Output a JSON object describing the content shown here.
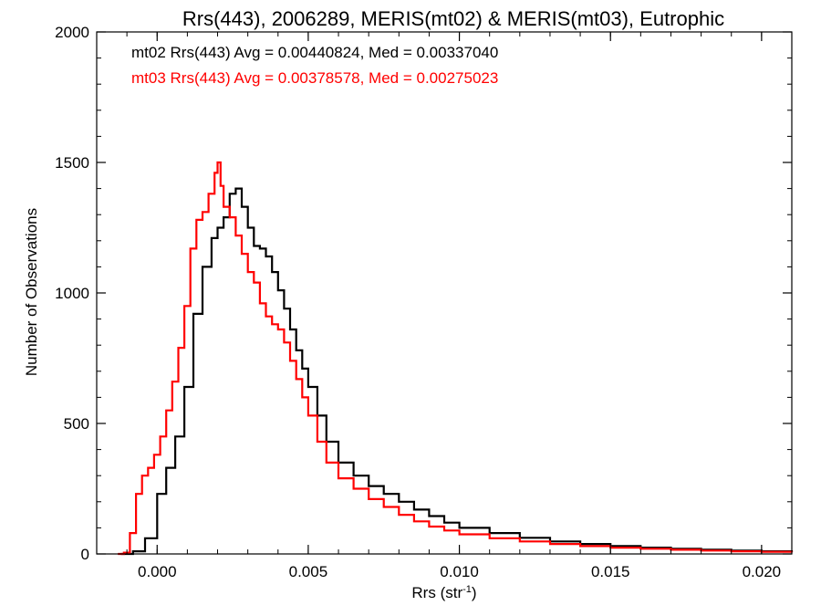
{
  "chart_data": {
    "type": "line",
    "title": "Rrs(443), 2006289, MERIS(mt02) & MERIS(mt03), Eutrophic",
    "xlabel_base": "Rrs (str",
    "xlabel_sup": "-1",
    "xlabel_close": ")",
    "ylabel": "Number of Observations",
    "xlim": [
      -0.002,
      0.021
    ],
    "ylim": [
      0,
      2000
    ],
    "x_ticks": [
      0.0,
      0.005,
      0.01,
      0.015,
      0.02
    ],
    "x_tick_labels": [
      "0.000",
      "0.005",
      "0.010",
      "0.015",
      "0.020"
    ],
    "y_ticks": [
      0,
      500,
      1000,
      1500,
      2000
    ],
    "y_tick_labels": [
      "0",
      "500",
      "1000",
      "1500",
      "2000"
    ],
    "grid": false,
    "annotations": [
      {
        "text": "mt02 Rrs(443) Avg = 0.00440824, Med = 0.00337040",
        "color": "#000000"
      },
      {
        "text": "mt03 Rrs(443) Avg = 0.00378578, Med = 0.00275023",
        "color": "#ff0000"
      }
    ],
    "series": [
      {
        "color": "#000000",
        "points": [
          [
            -0.0012,
            0
          ],
          [
            -0.0008,
            10
          ],
          [
            -0.0004,
            60
          ],
          [
            0.0,
            230
          ],
          [
            0.0003,
            330
          ],
          [
            0.0006,
            450
          ],
          [
            0.0009,
            640
          ],
          [
            0.0012,
            920
          ],
          [
            0.0015,
            1100
          ],
          [
            0.0018,
            1210
          ],
          [
            0.002,
            1250
          ],
          [
            0.0022,
            1290
          ],
          [
            0.0024,
            1380
          ],
          [
            0.0026,
            1400
          ],
          [
            0.0028,
            1330
          ],
          [
            0.003,
            1250
          ],
          [
            0.0032,
            1180
          ],
          [
            0.0034,
            1170
          ],
          [
            0.0036,
            1140
          ],
          [
            0.0038,
            1080
          ],
          [
            0.004,
            1010
          ],
          [
            0.0042,
            940
          ],
          [
            0.0044,
            860
          ],
          [
            0.0046,
            780
          ],
          [
            0.0048,
            710
          ],
          [
            0.005,
            640
          ],
          [
            0.0053,
            530
          ],
          [
            0.0056,
            430
          ],
          [
            0.006,
            350
          ],
          [
            0.0065,
            300
          ],
          [
            0.007,
            260
          ],
          [
            0.0075,
            230
          ],
          [
            0.008,
            200
          ],
          [
            0.0085,
            170
          ],
          [
            0.009,
            145
          ],
          [
            0.0095,
            120
          ],
          [
            0.01,
            100
          ],
          [
            0.011,
            80
          ],
          [
            0.012,
            62
          ],
          [
            0.013,
            48
          ],
          [
            0.014,
            38
          ],
          [
            0.015,
            30
          ],
          [
            0.016,
            24
          ],
          [
            0.017,
            20
          ],
          [
            0.018,
            16
          ],
          [
            0.019,
            13
          ],
          [
            0.02,
            10
          ],
          [
            0.021,
            8
          ]
        ]
      },
      {
        "color": "#ff0000",
        "points": [
          [
            -0.0013,
            0
          ],
          [
            -0.0011,
            5
          ],
          [
            -0.0009,
            80
          ],
          [
            -0.0007,
            230
          ],
          [
            -0.0005,
            300
          ],
          [
            -0.0003,
            330
          ],
          [
            -0.0001,
            380
          ],
          [
            0.0001,
            450
          ],
          [
            0.0003,
            550
          ],
          [
            0.0005,
            660
          ],
          [
            0.0007,
            790
          ],
          [
            0.0009,
            950
          ],
          [
            0.0011,
            1170
          ],
          [
            0.0013,
            1280
          ],
          [
            0.0015,
            1310
          ],
          [
            0.0017,
            1380
          ],
          [
            0.0019,
            1460
          ],
          [
            0.002,
            1500
          ],
          [
            0.0021,
            1410
          ],
          [
            0.0022,
            1330
          ],
          [
            0.0024,
            1290
          ],
          [
            0.0026,
            1220
          ],
          [
            0.0028,
            1150
          ],
          [
            0.003,
            1080
          ],
          [
            0.0032,
            1040
          ],
          [
            0.0034,
            960
          ],
          [
            0.0036,
            910
          ],
          [
            0.0038,
            880
          ],
          [
            0.004,
            860
          ],
          [
            0.0042,
            810
          ],
          [
            0.0044,
            740
          ],
          [
            0.0046,
            670
          ],
          [
            0.0048,
            600
          ],
          [
            0.005,
            530
          ],
          [
            0.0053,
            430
          ],
          [
            0.0056,
            350
          ],
          [
            0.006,
            290
          ],
          [
            0.0065,
            250
          ],
          [
            0.007,
            210
          ],
          [
            0.0075,
            180
          ],
          [
            0.008,
            150
          ],
          [
            0.0085,
            125
          ],
          [
            0.009,
            105
          ],
          [
            0.0095,
            90
          ],
          [
            0.01,
            75
          ],
          [
            0.011,
            60
          ],
          [
            0.012,
            48
          ],
          [
            0.013,
            38
          ],
          [
            0.014,
            30
          ],
          [
            0.015,
            24
          ],
          [
            0.016,
            20
          ],
          [
            0.017,
            16
          ],
          [
            0.018,
            13
          ],
          [
            0.019,
            10
          ],
          [
            0.02,
            8
          ],
          [
            0.021,
            6
          ]
        ]
      }
    ]
  }
}
